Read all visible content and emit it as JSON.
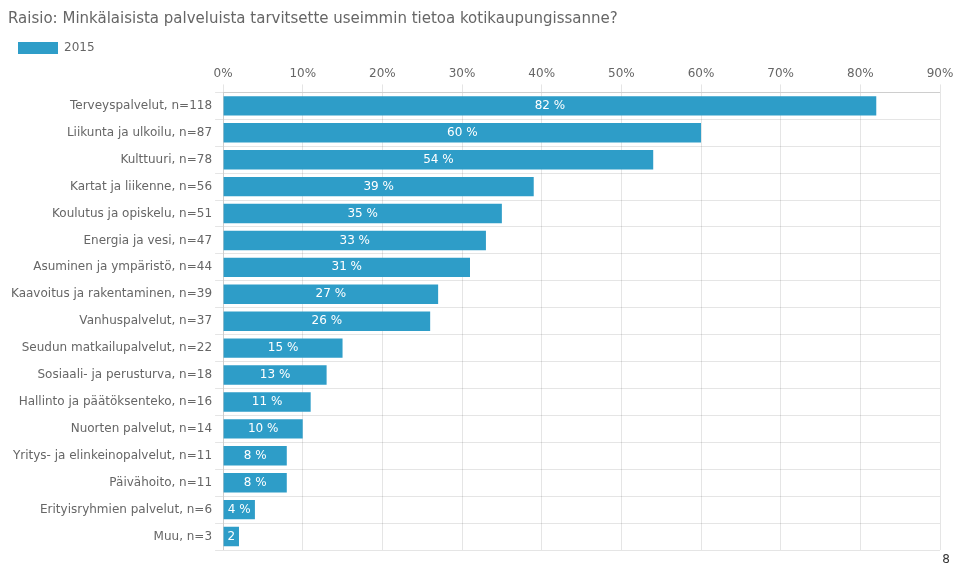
{
  "chart_data": {
    "type": "bar",
    "orientation": "horizontal",
    "title": "Raisio: Minkälaisista palveluista tarvitsette useimmin tietoa kotikaupungissanne?",
    "categories": [
      "Terveyspalvelut, n=118",
      "Liikunta ja ulkoilu, n=87",
      "Kulttuuri, n=78",
      "Kartat ja liikenne, n=56",
      "Koulutus ja opiskelu, n=51",
      "Energia ja vesi, n=47",
      "Asuminen ja ympäristö, n=44",
      "Kaavoitus ja rakentaminen, n=39",
      "Vanhuspalvelut, n=37",
      "Seudun matkailupalvelut, n=22",
      "Sosiaali- ja perusturva, n=18",
      "Hallinto ja päätöksenteko, n=16",
      "Nuorten palvelut, n=14",
      "Yritys- ja elinkeinopalvelut, n=11",
      "Päivähoito, n=11",
      "Erityisryhmien palvelut, n=6",
      "Muu, n=3"
    ],
    "series": [
      {
        "name": "2015",
        "color": "#2E9DC8",
        "values": [
          82,
          60,
          54,
          39,
          35,
          33,
          31,
          27,
          26,
          15,
          13,
          11,
          10,
          8,
          8,
          4,
          2
        ],
        "value_labels": [
          "82 %",
          "60 %",
          "54 %",
          "39 %",
          "35 %",
          "33 %",
          "31 %",
          "27 %",
          "26 %",
          "15 %",
          "13 %",
          "11 %",
          "10 %",
          "8 %",
          "8 %",
          "4 %",
          "2"
        ]
      }
    ],
    "data_labels": true,
    "xlim": [
      0,
      90
    ],
    "xticks": [
      {
        "value": 0,
        "label": "0%"
      },
      {
        "value": 10,
        "label": "10%"
      },
      {
        "value": 20,
        "label": "20%"
      },
      {
        "value": 30,
        "label": "30%"
      },
      {
        "value": 40,
        "label": "40%"
      },
      {
        "value": 50,
        "label": "50%"
      },
      {
        "value": 60,
        "label": "60%"
      },
      {
        "value": 70,
        "label": "70%"
      },
      {
        "value": 80,
        "label": "80%"
      },
      {
        "value": 90,
        "label": "90%"
      }
    ],
    "grid": true,
    "legend": "upper left",
    "annotations": [
      {
        "text": "8"
      }
    ]
  }
}
